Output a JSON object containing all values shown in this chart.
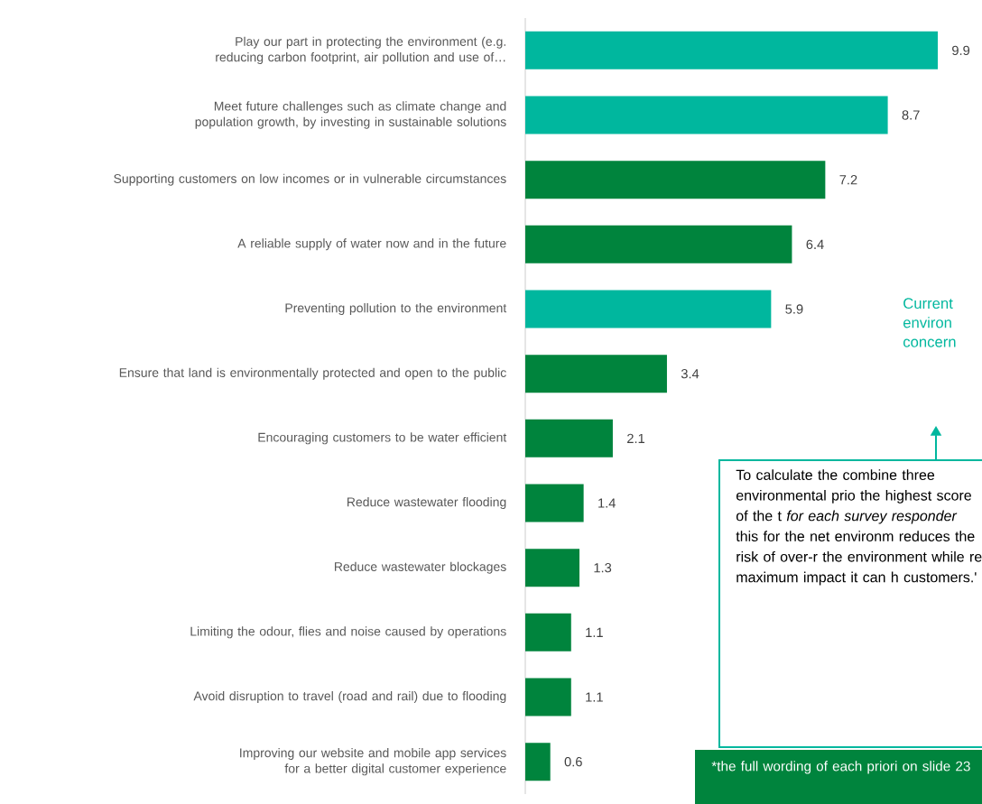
{
  "chart_data": {
    "type": "bar",
    "orientation": "horizontal",
    "data_labels": true,
    "categories": [
      "Play our part in protecting the environment (e.g. reducing carbon footprint, air pollution and use of…",
      "Meet future challenges such as climate change and population growth, by investing in sustainable solutions",
      "Supporting customers on low incomes or in vulnerable circumstances",
      "A reliable supply of water now and in the future",
      "Preventing pollution to the environment",
      "Ensure that land is environmentally protected and open to the public",
      "Encouraging customers to be water efficient",
      "Reduce wastewater flooding",
      "Reduce wastewater blockages",
      "Limiting the odour, flies and noise caused by operations",
      "Avoid disruption to travel  (road and rail)  due to flooding",
      "Improving our website and mobile app services for a better digital customer experience"
    ],
    "values": [
      9.9,
      8.7,
      7.2,
      6.4,
      5.9,
      3.4,
      2.1,
      1.4,
      1.3,
      1.1,
      1.1,
      0.6
    ],
    "colors": [
      "#00b79e",
      "#00b79e",
      "#00843d",
      "#00843d",
      "#00b79e",
      "#00843d",
      "#00843d",
      "#00843d",
      "#00843d",
      "#00843d",
      "#00843d",
      "#00843d"
    ],
    "annotations": [
      "Current environ concern",
      "To calculate the combine three environmental prio the highest score of the t *for each survey responder* this for the net environm reduces the risk of over-r the environment while re maximum impact it can h customers.'",
      "*the full wording of each priori on slide 23"
    ]
  }
}
